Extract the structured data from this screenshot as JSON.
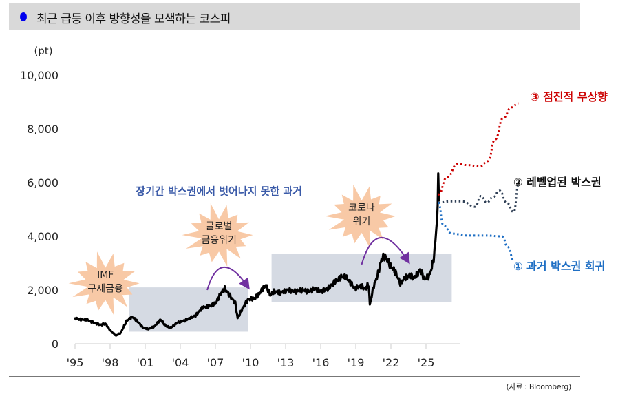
{
  "header": {
    "title": "최근 급등 이후 방향성을 모색하는 코스피",
    "bullet_color": "#0000ee"
  },
  "source": "(자료 : Bloomberg)",
  "chart_data": {
    "type": "line",
    "title": "최근 급등 이후 방향성을 모색하는 코스피",
    "ylabel": "(pt)",
    "ylim": [
      0,
      10000
    ],
    "xlim": [
      1995,
      2034
    ],
    "yticks": [
      0,
      2000,
      4000,
      6000,
      8000,
      10000
    ],
    "ytick_labels": [
      "0",
      "2,000",
      "4,000",
      "6,000",
      "8,000",
      "10,000"
    ],
    "xticks": [
      1995,
      1998,
      2001,
      2004,
      2007,
      2010,
      2013,
      2016,
      2019,
      2022,
      2025
    ],
    "xtick_labels": [
      "'95",
      "'98",
      "'01",
      "'04",
      "'07",
      "'10",
      "'13",
      "'16",
      "'19",
      "'22",
      "'25"
    ],
    "grid": false,
    "series": [
      {
        "name": "KOSPI",
        "color": "#000000",
        "style": "solid",
        "x": [
          1995,
          1995.5,
          1996,
          1996.6,
          1997.2,
          1997.6,
          1998.0,
          1998.5,
          1998.9,
          1999.4,
          1999.9,
          2000.3,
          2000.8,
          2001.3,
          2001.8,
          2002.3,
          2002.8,
          2003.2,
          2003.8,
          2004.3,
          2004.8,
          2005.3,
          2005.9,
          2006.5,
          2007.0,
          2007.5,
          2007.8,
          2008.3,
          2008.7,
          2008.9,
          2009.3,
          2009.8,
          2010.4,
          2010.9,
          2011.3,
          2011.7,
          2012.0,
          2012.6,
          2013.2,
          2013.8,
          2014.4,
          2015.0,
          2015.5,
          2016.0,
          2016.6,
          2017.2,
          2017.8,
          2018.1,
          2018.5,
          2018.9,
          2019.4,
          2019.8,
          2020.1,
          2020.2,
          2020.5,
          2020.9,
          2021.2,
          2021.5,
          2021.9,
          2022.4,
          2022.8,
          2023.2,
          2023.6,
          2024.0,
          2024.5,
          2024.9,
          2025.3,
          2025.5,
          2025.7,
          2025.85,
          2026.0,
          2026.05,
          2026.1
        ],
        "y": [
          950,
          900,
          900,
          780,
          700,
          750,
          500,
          300,
          400,
          850,
          1000,
          850,
          600,
          550,
          650,
          900,
          650,
          600,
          800,
          850,
          950,
          1050,
          1350,
          1400,
          1500,
          1900,
          2050,
          1750,
          1500,
          950,
          1300,
          1650,
          1700,
          1950,
          2200,
          1800,
          1950,
          1900,
          2000,
          1950,
          2000,
          1950,
          2050,
          1950,
          2050,
          2300,
          2500,
          2500,
          2300,
          2050,
          2150,
          2050,
          2200,
          1450,
          2100,
          2600,
          3150,
          3250,
          2950,
          2650,
          2250,
          2450,
          2550,
          2450,
          2750,
          2400,
          2550,
          2850,
          3300,
          4100,
          5000,
          6300,
          5300
        ]
      },
      {
        "name": "③ 점진적 우상향",
        "color": "#cc0000",
        "style": "dotted",
        "x": [
          2026.05,
          2026.8,
          2027.7,
          2028.6,
          2029.6,
          2030.3,
          2030.9,
          2031.6,
          2032.3,
          2032.9
        ],
        "y": [
          5550,
          6200,
          6700,
          6650,
          6600,
          6800,
          7600,
          8400,
          8800,
          8950
        ]
      },
      {
        "name": "② 레벨업된 박스권",
        "color": "#2f3f55",
        "style": "dotted",
        "x": [
          2026.05,
          2027.0,
          2028.1,
          2029.2,
          2029.7,
          2030.2,
          2030.7,
          2031.3,
          2031.9,
          2032.5,
          2032.9
        ],
        "y": [
          5250,
          5300,
          5300,
          5100,
          5500,
          5250,
          5450,
          5700,
          5250,
          4900,
          5900
        ]
      },
      {
        "name": "① 과거 박스권 회귀",
        "color": "#1f6fc4",
        "style": "dotted",
        "x": [
          2026.05,
          2026.5,
          2027.2,
          2028.5,
          2030.0,
          2031.5,
          2032.0,
          2032.5
        ],
        "y": [
          5250,
          4400,
          4100,
          4030,
          4030,
          4000,
          3600,
          3100
        ]
      }
    ],
    "boxes": [
      {
        "x": [
          1999.6,
          2009.8
        ],
        "y": [
          450,
          2100
        ],
        "color": "#d5dae3"
      },
      {
        "x": [
          2011.8,
          2027.2
        ],
        "y": [
          1550,
          3350
        ],
        "color": "#d5dae3"
      }
    ],
    "annotations": [
      {
        "text": "장기간 박스권에서 벗어나지 못한 과거",
        "color": "#3a5aa8",
        "x": 2000.2,
        "y": 5550
      },
      {
        "text": [
          "IMF",
          "구제금융"
        ],
        "kind": "starburst",
        "x": 1997.6,
        "y": 2250
      },
      {
        "text": [
          "글로벌",
          "금융위기"
        ],
        "kind": "starburst",
        "x": 2007.3,
        "y": 4050
      },
      {
        "text": [
          "코로나",
          "위기"
        ],
        "kind": "starburst",
        "x": 2019.5,
        "y": 4750
      }
    ],
    "arrows": [
      {
        "x": [
          2006.3,
          2007.4,
          2009.8
        ],
        "y": [
          2000,
          2850,
          2100
        ],
        "color": "#7030a0"
      },
      {
        "x": [
          2019.5,
          2020.8,
          2023.5
        ],
        "y": [
          2950,
          3950,
          3050
        ],
        "color": "#7030a0"
      }
    ]
  }
}
